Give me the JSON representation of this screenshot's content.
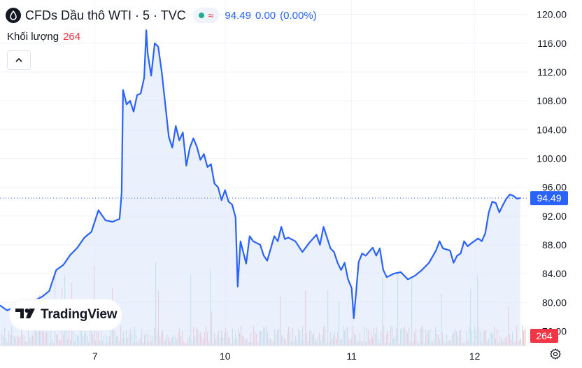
{
  "header": {
    "title": "CFDs Dầu thô WTI · 5 · TVC",
    "last": "94.49",
    "change": "0.00",
    "change_pct": "(0.00%)",
    "status_color": "#22ab94"
  },
  "volume_legend": {
    "label": "Khối lượng",
    "value": "264"
  },
  "logo": {
    "text": "TradingView"
  },
  "colors": {
    "line": "#2962ff",
    "area": "#dbe4fb",
    "vol_up": "#b2dfdb",
    "vol_down": "#f7b8be",
    "badge_price": "#2962ff",
    "badge_volume": "#f23645"
  },
  "icons": [
    "oil-drop-icon",
    "chevron-up-icon",
    "settings-icon",
    "tradingview-logo-icon"
  ],
  "chart_data": {
    "type": "area",
    "ylim": [
      74,
      122
    ],
    "yticks": [
      "120.00",
      "116.00",
      "112.00",
      "108.00",
      "104.00",
      "100.00",
      "96.00",
      "92.00",
      "88.00",
      "84.00",
      "80.00",
      "76.00"
    ],
    "ytick_values": [
      120,
      116,
      112,
      108,
      104,
      100,
      96,
      92,
      88,
      84,
      80,
      76
    ],
    "xticks": [
      "7",
      "10",
      "11",
      "12"
    ],
    "xtick_positions": [
      1.35,
      3.2,
      5.0,
      6.75
    ],
    "xlim": [
      0,
      7.5
    ],
    "last_price": 94.49,
    "last_price_label": "94.49",
    "volume_label": "264",
    "series": [
      {
        "values": [
          [
            0,
            79.6
          ],
          [
            0.1,
            78.9
          ],
          [
            0.2,
            79.3
          ],
          [
            0.35,
            80.1
          ],
          [
            0.5,
            80.3
          ],
          [
            0.6,
            80.8
          ],
          [
            0.7,
            81.6
          ],
          [
            0.8,
            84.5
          ],
          [
            0.9,
            85.2
          ],
          [
            1.0,
            86.6
          ],
          [
            1.1,
            87.6
          ],
          [
            1.2,
            89.0
          ],
          [
            1.3,
            89.8
          ],
          [
            1.4,
            92.8
          ],
          [
            1.5,
            91.4
          ],
          [
            1.6,
            91.2
          ],
          [
            1.7,
            91.6
          ],
          [
            1.73,
            95.2
          ],
          [
            1.75,
            109.5
          ],
          [
            1.8,
            107.5
          ],
          [
            1.85,
            108.0
          ],
          [
            1.9,
            106.5
          ],
          [
            1.95,
            108.8
          ],
          [
            2.0,
            109.0
          ],
          [
            2.05,
            111.2
          ],
          [
            2.08,
            117.8
          ],
          [
            2.1,
            114.6
          ],
          [
            2.15,
            111.5
          ],
          [
            2.2,
            116.0
          ],
          [
            2.25,
            115.5
          ],
          [
            2.3,
            112.0
          ],
          [
            2.35,
            107.5
          ],
          [
            2.4,
            103.0
          ],
          [
            2.45,
            101.5
          ],
          [
            2.5,
            104.5
          ],
          [
            2.55,
            102.5
          ],
          [
            2.6,
            103.6
          ],
          [
            2.65,
            99.0
          ],
          [
            2.7,
            101.5
          ],
          [
            2.75,
            102.8
          ],
          [
            2.8,
            101.6
          ],
          [
            2.85,
            99.8
          ],
          [
            2.9,
            100.6
          ],
          [
            2.95,
            98.8
          ],
          [
            3.0,
            99.2
          ],
          [
            3.05,
            96.5
          ],
          [
            3.1,
            96.0
          ],
          [
            3.15,
            94.2
          ],
          [
            3.2,
            95.6
          ],
          [
            3.25,
            94.0
          ],
          [
            3.3,
            93.6
          ],
          [
            3.35,
            91.8
          ],
          [
            3.38,
            82.2
          ],
          [
            3.42,
            88.5
          ],
          [
            3.5,
            85.4
          ],
          [
            3.55,
            89.2
          ],
          [
            3.6,
            88.5
          ],
          [
            3.7,
            88.0
          ],
          [
            3.75,
            86.5
          ],
          [
            3.8,
            85.8
          ],
          [
            3.85,
            87.5
          ],
          [
            3.9,
            89.2
          ],
          [
            3.95,
            88.5
          ],
          [
            4.0,
            90.5
          ],
          [
            4.05,
            88.8
          ],
          [
            4.1,
            89.0
          ],
          [
            4.2,
            88.5
          ],
          [
            4.3,
            87.0
          ],
          [
            4.4,
            88.3
          ],
          [
            4.5,
            89.4
          ],
          [
            4.55,
            88.0
          ],
          [
            4.6,
            90.5
          ],
          [
            4.65,
            89.0
          ],
          [
            4.7,
            87.5
          ],
          [
            4.75,
            87.0
          ],
          [
            4.8,
            85.5
          ],
          [
            4.85,
            84.5
          ],
          [
            4.9,
            85.5
          ],
          [
            4.95,
            83.2
          ],
          [
            5.0,
            82.0
          ],
          [
            5.03,
            77.8
          ],
          [
            5.06,
            81.0
          ],
          [
            5.1,
            85.6
          ],
          [
            5.15,
            86.8
          ],
          [
            5.2,
            86.5
          ],
          [
            5.3,
            87.6
          ],
          [
            5.35,
            86.5
          ],
          [
            5.4,
            87.5
          ],
          [
            5.45,
            84.5
          ],
          [
            5.5,
            83.5
          ],
          [
            5.6,
            84.0
          ],
          [
            5.7,
            84.2
          ],
          [
            5.8,
            83.2
          ],
          [
            5.9,
            83.7
          ],
          [
            6.0,
            84.5
          ],
          [
            6.1,
            85.5
          ],
          [
            6.2,
            87.2
          ],
          [
            6.25,
            88.5
          ],
          [
            6.3,
            87.5
          ],
          [
            6.4,
            87.2
          ],
          [
            6.45,
            85.5
          ],
          [
            6.5,
            86.5
          ],
          [
            6.55,
            86.8
          ],
          [
            6.6,
            88.5
          ],
          [
            6.65,
            87.8
          ],
          [
            6.7,
            88.2
          ],
          [
            6.8,
            88.9
          ],
          [
            6.85,
            88.5
          ],
          [
            6.9,
            89.6
          ],
          [
            6.95,
            92.5
          ],
          [
            7.0,
            94.0
          ],
          [
            7.05,
            93.8
          ],
          [
            7.1,
            92.5
          ],
          [
            7.15,
            93.5
          ],
          [
            7.2,
            94.4
          ],
          [
            7.25,
            95.0
          ],
          [
            7.3,
            94.8
          ],
          [
            7.35,
            94.4
          ],
          [
            7.4,
            94.49
          ]
        ]
      }
    ]
  }
}
